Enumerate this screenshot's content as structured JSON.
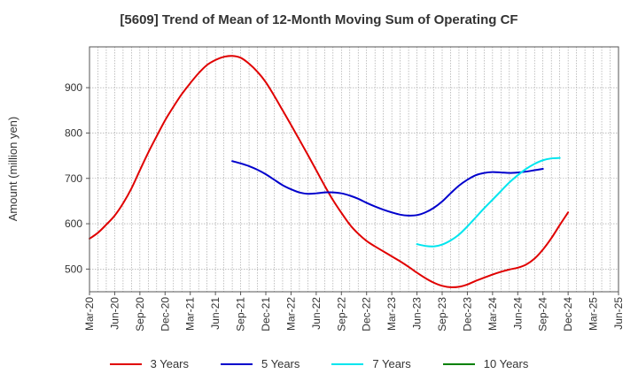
{
  "chart_data": {
    "type": "line",
    "title": "[5609]  Trend of Mean of 12-Month Moving Sum of Operating CF",
    "xlabel": "",
    "ylabel": "Amount (million yen)",
    "ylim": [
      450,
      990
    ],
    "yticks": [
      500,
      600,
      700,
      800,
      900
    ],
    "grid": true,
    "legend_position": "bottom",
    "x_tick_labels": [
      "Mar-20",
      "Jun-20",
      "Sep-20",
      "Dec-20",
      "Mar-21",
      "Jun-21",
      "Sep-21",
      "Dec-21",
      "Mar-22",
      "Jun-22",
      "Sep-22",
      "Dec-22",
      "Mar-23",
      "Jun-23",
      "Sep-23",
      "Dec-23",
      "Mar-24",
      "Jun-24",
      "Sep-24",
      "Dec-24",
      "Mar-25",
      "Jun-25"
    ],
    "series": [
      {
        "name": "3 Years",
        "color": "#e00000",
        "points": [
          {
            "x": "Mar-20",
            "y": 567
          },
          {
            "x": "Apr-20",
            "y": 580
          },
          {
            "x": "May-20",
            "y": 598
          },
          {
            "x": "Jun-20",
            "y": 618
          },
          {
            "x": "Jul-20",
            "y": 645
          },
          {
            "x": "Aug-20",
            "y": 678
          },
          {
            "x": "Sep-20",
            "y": 718
          },
          {
            "x": "Oct-20",
            "y": 757
          },
          {
            "x": "Nov-20",
            "y": 793
          },
          {
            "x": "Dec-20",
            "y": 828
          },
          {
            "x": "Jan-21",
            "y": 858
          },
          {
            "x": "Feb-21",
            "y": 886
          },
          {
            "x": "Mar-21",
            "y": 910
          },
          {
            "x": "Apr-21",
            "y": 932
          },
          {
            "x": "May-21",
            "y": 950
          },
          {
            "x": "Jun-21",
            "y": 961
          },
          {
            "x": "Jul-21",
            "y": 968
          },
          {
            "x": "Aug-21",
            "y": 970
          },
          {
            "x": "Sep-21",
            "y": 966
          },
          {
            "x": "Oct-21",
            "y": 953
          },
          {
            "x": "Nov-21",
            "y": 935
          },
          {
            "x": "Dec-21",
            "y": 912
          },
          {
            "x": "Jan-22",
            "y": 882
          },
          {
            "x": "Feb-22",
            "y": 850
          },
          {
            "x": "Mar-22",
            "y": 818
          },
          {
            "x": "Apr-22",
            "y": 785
          },
          {
            "x": "May-22",
            "y": 752
          },
          {
            "x": "Jun-22",
            "y": 718
          },
          {
            "x": "Jul-22",
            "y": 684
          },
          {
            "x": "Aug-22",
            "y": 652
          },
          {
            "x": "Sep-22",
            "y": 624
          },
          {
            "x": "Oct-22",
            "y": 598
          },
          {
            "x": "Nov-22",
            "y": 578
          },
          {
            "x": "Dec-22",
            "y": 562
          },
          {
            "x": "Jan-23",
            "y": 550
          },
          {
            "x": "Feb-23",
            "y": 539
          },
          {
            "x": "Mar-23",
            "y": 528
          },
          {
            "x": "Apr-23",
            "y": 517
          },
          {
            "x": "May-23",
            "y": 505
          },
          {
            "x": "Jun-23",
            "y": 492
          },
          {
            "x": "Jul-23",
            "y": 480
          },
          {
            "x": "Aug-23",
            "y": 470
          },
          {
            "x": "Sep-23",
            "y": 463
          },
          {
            "x": "Oct-23",
            "y": 460
          },
          {
            "x": "Nov-23",
            "y": 461
          },
          {
            "x": "Dec-23",
            "y": 466
          },
          {
            "x": "Jan-24",
            "y": 474
          },
          {
            "x": "Feb-24",
            "y": 481
          },
          {
            "x": "Mar-24",
            "y": 488
          },
          {
            "x": "Apr-24",
            "y": 494
          },
          {
            "x": "May-24",
            "y": 499
          },
          {
            "x": "Jun-24",
            "y": 503
          },
          {
            "x": "Jul-24",
            "y": 510
          },
          {
            "x": "Aug-24",
            "y": 523
          },
          {
            "x": "Sep-24",
            "y": 543
          },
          {
            "x": "Oct-24",
            "y": 568
          },
          {
            "x": "Nov-24",
            "y": 597
          },
          {
            "x": "Dec-24",
            "y": 625
          }
        ]
      },
      {
        "name": "5 Years",
        "color": "#0000cc",
        "points": [
          {
            "x": "Aug-21",
            "y": 738
          },
          {
            "x": "Sep-21",
            "y": 733
          },
          {
            "x": "Oct-21",
            "y": 727
          },
          {
            "x": "Nov-21",
            "y": 719
          },
          {
            "x": "Dec-21",
            "y": 709
          },
          {
            "x": "Jan-22",
            "y": 697
          },
          {
            "x": "Feb-22",
            "y": 685
          },
          {
            "x": "Mar-22",
            "y": 676
          },
          {
            "x": "Apr-22",
            "y": 669
          },
          {
            "x": "May-22",
            "y": 666
          },
          {
            "x": "Jun-22",
            "y": 667
          },
          {
            "x": "Jul-22",
            "y": 669
          },
          {
            "x": "Aug-22",
            "y": 669
          },
          {
            "x": "Sep-22",
            "y": 667
          },
          {
            "x": "Oct-22",
            "y": 662
          },
          {
            "x": "Nov-22",
            "y": 655
          },
          {
            "x": "Dec-22",
            "y": 646
          },
          {
            "x": "Jan-23",
            "y": 638
          },
          {
            "x": "Feb-23",
            "y": 631
          },
          {
            "x": "Mar-23",
            "y": 625
          },
          {
            "x": "Apr-23",
            "y": 620
          },
          {
            "x": "May-23",
            "y": 618
          },
          {
            "x": "Jun-23",
            "y": 619
          },
          {
            "x": "Jul-23",
            "y": 625
          },
          {
            "x": "Aug-23",
            "y": 635
          },
          {
            "x": "Sep-23",
            "y": 649
          },
          {
            "x": "Oct-23",
            "y": 667
          },
          {
            "x": "Nov-23",
            "y": 684
          },
          {
            "x": "Dec-23",
            "y": 697
          },
          {
            "x": "Jan-24",
            "y": 707
          },
          {
            "x": "Feb-24",
            "y": 712
          },
          {
            "x": "Mar-24",
            "y": 714
          },
          {
            "x": "Apr-24",
            "y": 713
          },
          {
            "x": "May-24",
            "y": 712
          },
          {
            "x": "Jun-24",
            "y": 713
          },
          {
            "x": "Jul-24",
            "y": 715
          },
          {
            "x": "Aug-24",
            "y": 718
          },
          {
            "x": "Sep-24",
            "y": 721
          }
        ]
      },
      {
        "name": "7 Years",
        "color": "#00e5ee",
        "points": [
          {
            "x": "Jun-23",
            "y": 555
          },
          {
            "x": "Jul-23",
            "y": 551
          },
          {
            "x": "Aug-23",
            "y": 550
          },
          {
            "x": "Sep-23",
            "y": 554
          },
          {
            "x": "Oct-23",
            "y": 563
          },
          {
            "x": "Nov-23",
            "y": 576
          },
          {
            "x": "Dec-23",
            "y": 594
          },
          {
            "x": "Jan-24",
            "y": 614
          },
          {
            "x": "Feb-24",
            "y": 634
          },
          {
            "x": "Mar-24",
            "y": 653
          },
          {
            "x": "Apr-24",
            "y": 672
          },
          {
            "x": "May-24",
            "y": 691
          },
          {
            "x": "Jun-24",
            "y": 707
          },
          {
            "x": "Jul-24",
            "y": 721
          },
          {
            "x": "Aug-24",
            "y": 732
          },
          {
            "x": "Sep-24",
            "y": 740
          },
          {
            "x": "Oct-24",
            "y": 744
          },
          {
            "x": "Nov-24",
            "y": 745
          }
        ]
      },
      {
        "name": "10 Years",
        "color": "#008000",
        "points": []
      }
    ]
  }
}
